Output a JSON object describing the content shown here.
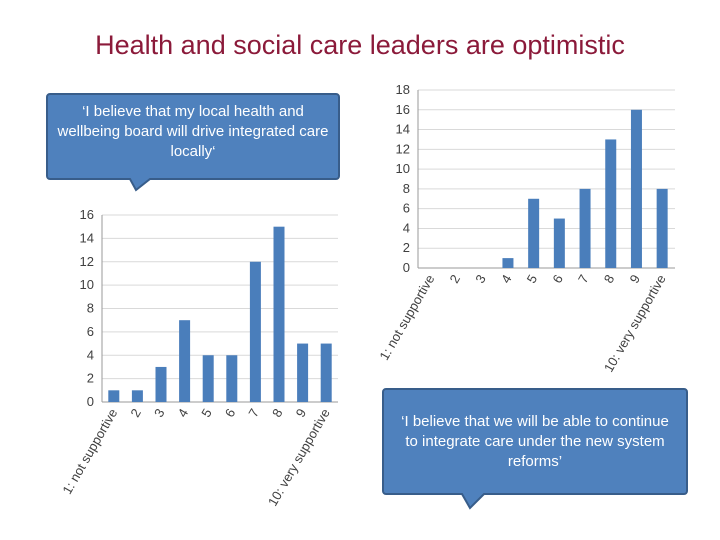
{
  "slide": {
    "title": "Health and social care leaders are optimistic"
  },
  "callouts": {
    "left": "‘I believe that my local health and wellbeing board will drive integrated care locally‘",
    "right": "‘I believe that we will be able to continue to integrate care under the new system reforms’"
  },
  "colors": {
    "title": "#8b1a3a",
    "bar": "#4a7ebb",
    "callout_fill": "#4f81bd",
    "callout_border": "#385d8a"
  },
  "chart_data": [
    {
      "type": "bar",
      "title": "",
      "xlabel": "",
      "ylabel": "",
      "categories": [
        "1: not supportive",
        "2",
        "3",
        "4",
        "5",
        "6",
        "7",
        "8",
        "9",
        "10: very supportive"
      ],
      "values": [
        1,
        1,
        3,
        7,
        4,
        4,
        12,
        15,
        5,
        5
      ],
      "ylim": [
        0,
        16
      ],
      "yticks": [
        "0",
        "2",
        "4",
        "6",
        "8",
        "10",
        "12",
        "14",
        "16"
      ],
      "grid": true
    },
    {
      "type": "bar",
      "title": "",
      "xlabel": "",
      "ylabel": "",
      "categories": [
        "1: not supportive",
        "2",
        "3",
        "4",
        "5",
        "6",
        "7",
        "8",
        "9",
        "10: very supportive"
      ],
      "values": [
        0,
        0,
        0,
        1,
        7,
        5,
        8,
        13,
        16,
        8
      ],
      "ylim": [
        0,
        18
      ],
      "yticks": [
        "0",
        "2",
        "4",
        "6",
        "8",
        "10",
        "12",
        "14",
        "16",
        "18"
      ],
      "grid": true
    }
  ]
}
